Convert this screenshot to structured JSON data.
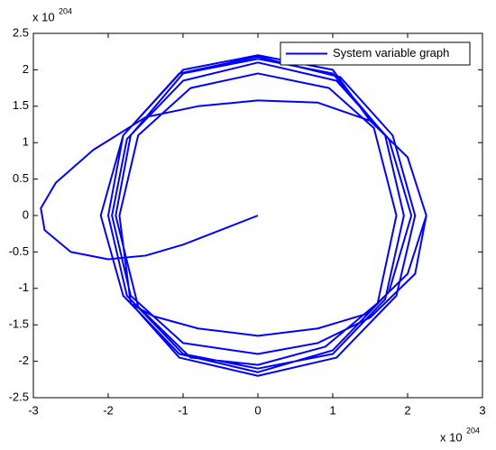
{
  "chart_data": {
    "type": "line",
    "x_multiplier": {
      "text": "x 10",
      "exponent": "204"
    },
    "y_multiplier": {
      "text": "x 10",
      "exponent": "204"
    },
    "x": [
      0,
      -0.5,
      -1,
      -1.5,
      -2,
      -2.5,
      -2.85,
      -2.9,
      -2.7,
      -2.2,
      -1.5,
      -0.8,
      0,
      0.8,
      1.5,
      2,
      2.25,
      2.1,
      1.5,
      0.8,
      0,
      -1.0,
      -1.7,
      -1.95,
      -1.75,
      -1.0,
      0,
      1.05,
      1.75,
      2.05,
      1.75,
      1.0,
      0,
      -1.05,
      -1.8,
      -2.1,
      -1.8,
      -1.05,
      0,
      1.1,
      1.8,
      2.1,
      1.85,
      1.05,
      0,
      -1.05,
      -1.7,
      -1.85,
      -1.6,
      -0.9,
      0,
      0.95,
      1.55,
      1.85,
      1.6,
      0.9,
      0,
      -0.9,
      -1.6,
      -1.9,
      -1.7,
      -1,
      0,
      1,
      1.7,
      1.95,
      1.7,
      1,
      0,
      -1,
      -1.75,
      -2.0,
      -1.8,
      -1,
      0,
      1,
      1.5,
      2.0,
      2.25,
      2.0,
      1.45,
      0.8,
      0,
      -0.8,
      -1.4,
      -1.68
    ],
    "series": [
      {
        "name": "System variable graph",
        "color": "#0000ff",
        "values": [
          0,
          -0.2,
          -0.4,
          -0.55,
          -0.6,
          -0.5,
          -0.2,
          0.1,
          0.45,
          0.9,
          1.35,
          1.5,
          1.58,
          1.55,
          1.3,
          0.8,
          0,
          -0.8,
          -1.4,
          -1.75,
          -1.9,
          -1.75,
          -1.1,
          0,
          1.05,
          1.85,
          2.1,
          1.85,
          1.05,
          0,
          -1.05,
          -1.85,
          -2.15,
          -1.9,
          -1.1,
          0,
          1.1,
          1.95,
          2.18,
          1.9,
          1.1,
          0,
          -1.1,
          -1.95,
          -2.2,
          -1.95,
          -1.2,
          0,
          1.1,
          1.75,
          1.95,
          1.75,
          1.2,
          0,
          -1.2,
          -1.8,
          -2.05,
          -1.95,
          -1.25,
          0,
          1.1,
          1.95,
          2.15,
          1.95,
          1.1,
          0,
          -1.15,
          -1.9,
          -2.1,
          -1.9,
          -1.1,
          0,
          1.1,
          2.0,
          2.2,
          2.0,
          1.3,
          0.8,
          0,
          -0.8,
          -1.35,
          -1.55,
          -1.65,
          -1.55,
          -1.38,
          -1.22
        ]
      }
    ],
    "xlim": [
      -3,
      3
    ],
    "xticks": [
      -3,
      -2,
      -1,
      0,
      1,
      2,
      3
    ],
    "ylim": [
      -2.5,
      2.5
    ],
    "yticks": [
      -2.5,
      -2,
      -1.5,
      -1,
      -0.5,
      0,
      0.5,
      1,
      1.5,
      2,
      2.5
    ],
    "legend": "upper right"
  }
}
